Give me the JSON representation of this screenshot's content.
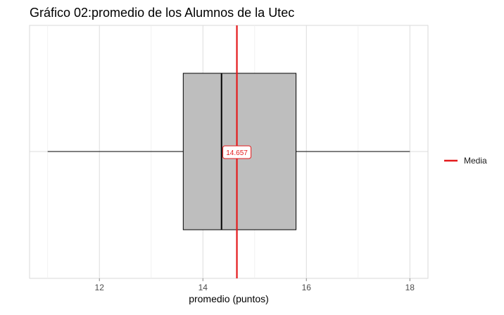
{
  "chart_data": {
    "type": "boxplot",
    "title": "Gráfico 02:promedio de los Alumnos de la Utec",
    "xlabel": "promedio (puntos)",
    "ylabel": "",
    "xlim": [
      10.65,
      18.35
    ],
    "x_ticks": [
      12,
      14,
      16,
      18
    ],
    "grid": true,
    "box": {
      "min": 11.0,
      "q1": 13.62,
      "median": 14.36,
      "q3": 15.8,
      "max": 18.0,
      "fill": "#bebebe"
    },
    "mean": {
      "value": 14.657,
      "label": "14.657",
      "color": "#e41a1c"
    },
    "legend": {
      "position": "right",
      "entries": [
        {
          "name": "Media",
          "color": "#e41a1c"
        }
      ]
    }
  }
}
